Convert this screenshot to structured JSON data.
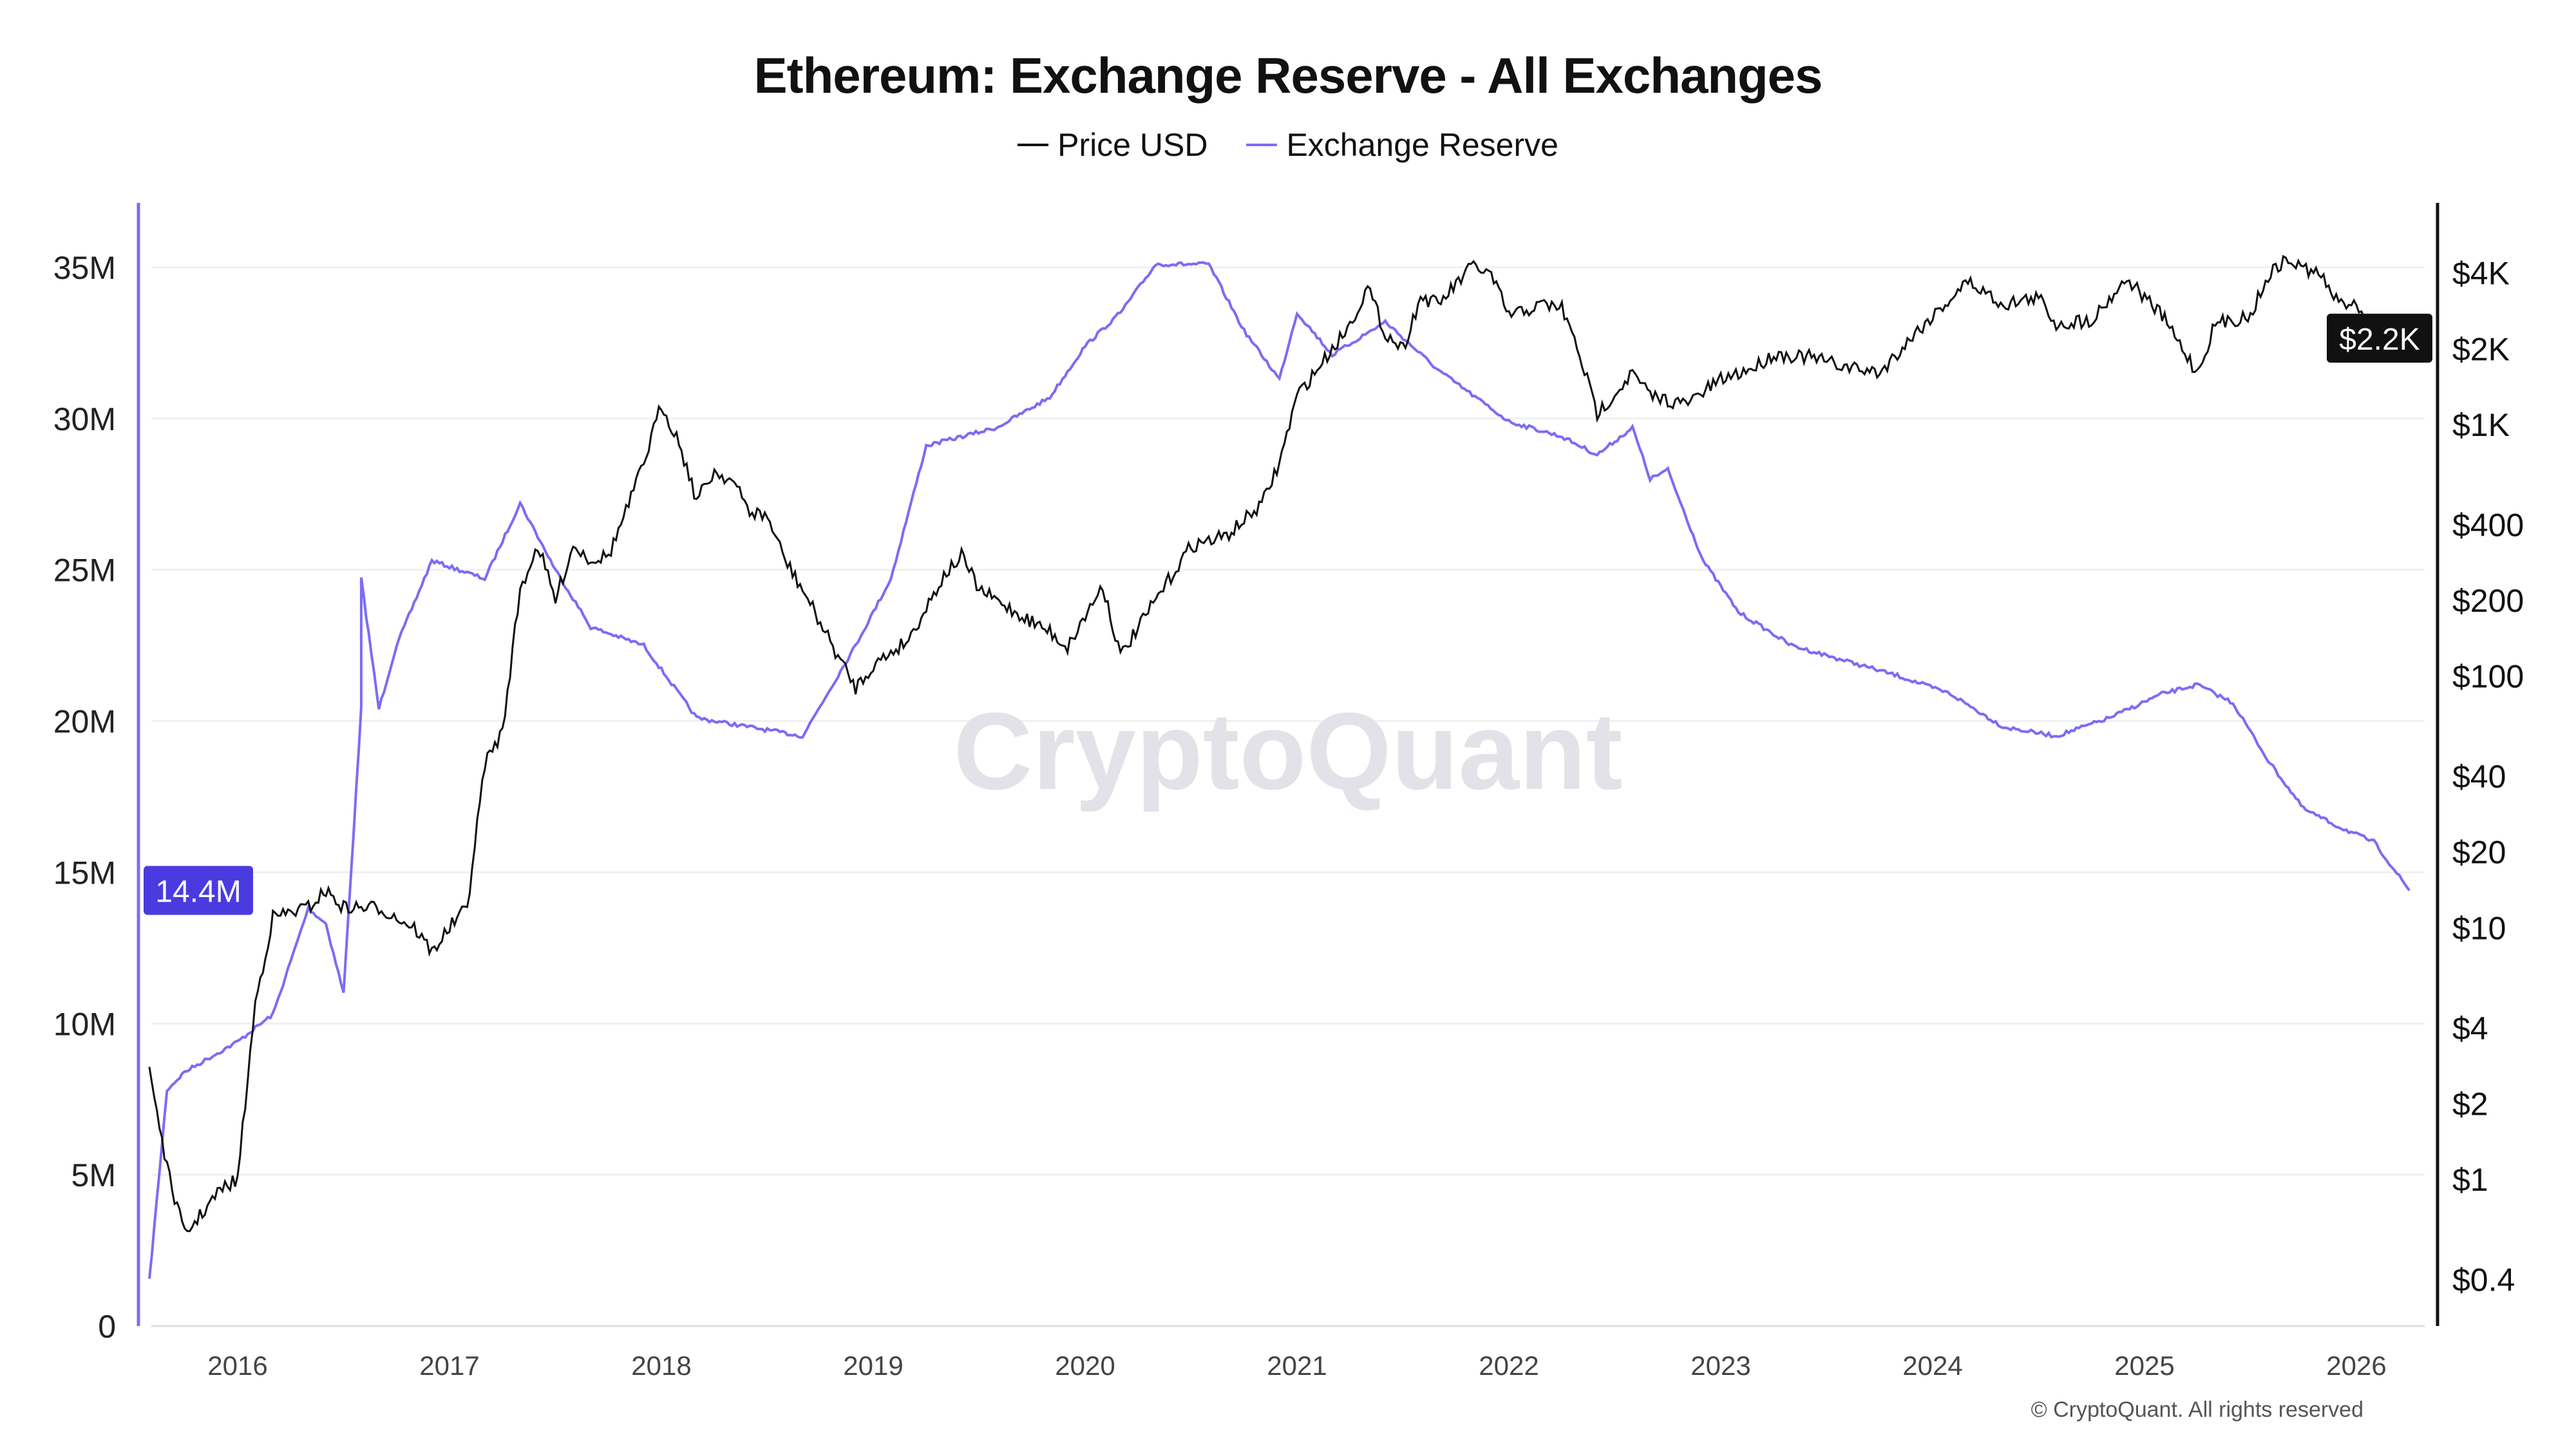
{
  "chart_data": {
    "type": "line",
    "title": "Ethereum: Exchange Reserve - All Exchanges",
    "legend_position": "top-center",
    "grid": true,
    "watermark": "CryptoQuant",
    "copyright": "© CryptoQuant. All rights reserved",
    "x_ticks": [
      "2016",
      "2017",
      "2018",
      "2019",
      "2020",
      "2021",
      "2022",
      "2023",
      "2024",
      "2025",
      "2026"
    ],
    "y_left": {
      "ticks": [
        "0",
        "5M",
        "10M",
        "15M",
        "20M",
        "25M",
        "30M",
        "35M"
      ],
      "tick_values": [
        0,
        5,
        10,
        15,
        20,
        25,
        30,
        35
      ],
      "unit": "M",
      "range": [
        0,
        37
      ],
      "current_label": "14.4M",
      "current_value": 14.4
    },
    "y_right": {
      "scale": "log",
      "ticks": [
        "$0.4",
        "$1",
        "$2",
        "$4",
        "$10",
        "$20",
        "$40",
        "$100",
        "$200",
        "$400",
        "$1K",
        "$2K",
        "$4K"
      ],
      "tick_values": [
        0.4,
        1,
        2,
        4,
        10,
        20,
        40,
        100,
        200,
        400,
        1000,
        2000,
        4000
      ],
      "current_label": "$2.2K",
      "current_value": 2200
    },
    "series": [
      {
        "name": "Price USD",
        "color": "#111111",
        "axis": "right",
        "x": [
          "2015-08",
          "2015-09",
          "2015-10",
          "2015-12",
          "2016-01",
          "2016-02",
          "2016-03",
          "2016-05",
          "2016-06",
          "2016-07",
          "2016-09",
          "2016-11",
          "2016-12",
          "2017-01",
          "2017-02",
          "2017-03",
          "2017-04",
          "2017-05",
          "2017-06",
          "2017-07",
          "2017-08",
          "2017-09",
          "2017-10",
          "2017-11",
          "2017-12",
          "2018-01",
          "2018-02",
          "2018-03",
          "2018-04",
          "2018-05",
          "2018-06",
          "2018-07",
          "2018-08",
          "2018-09",
          "2018-11",
          "2018-12",
          "2019-01",
          "2019-03",
          "2019-05",
          "2019-06",
          "2019-07",
          "2019-09",
          "2019-11",
          "2019-12",
          "2020-02",
          "2020-03",
          "2020-05",
          "2020-07",
          "2020-09",
          "2020-11",
          "2020-12",
          "2021-01",
          "2021-02",
          "2021-04",
          "2021-05",
          "2021-06",
          "2021-07",
          "2021-08",
          "2021-09",
          "2021-11",
          "2021-12",
          "2022-01",
          "2022-03",
          "2022-04",
          "2022-05",
          "2022-06",
          "2022-08",
          "2022-09",
          "2022-11",
          "2023-01",
          "2023-03",
          "2023-04",
          "2023-06",
          "2023-08",
          "2023-10",
          "2023-12",
          "2024-03",
          "2024-05",
          "2024-07",
          "2024-08",
          "2024-10",
          "2024-12",
          "2025-02",
          "2025-04",
          "2025-05",
          "2025-07",
          "2025-08",
          "2025-09",
          "2025-11",
          "2025-12",
          "2026-01",
          "2026-02",
          "2026-03",
          "2026-04"
        ],
        "values": [
          2.8,
          1.1,
          0.6,
          0.9,
          1.0,
          5,
          11,
          12,
          14,
          12,
          12,
          10,
          8,
          10,
          12,
          45,
          60,
          220,
          330,
          200,
          330,
          290,
          300,
          450,
          700,
          1200,
          850,
          500,
          650,
          600,
          450,
          430,
          290,
          220,
          120,
          90,
          110,
          140,
          250,
          300,
          220,
          180,
          150,
          130,
          230,
          120,
          200,
          330,
          360,
          480,
          700,
          1300,
          1600,
          2500,
          3500,
          2300,
          2000,
          3200,
          3000,
          4300,
          3900,
          2700,
          3000,
          2900,
          1900,
          1100,
          1600,
          1300,
          1200,
          1500,
          1700,
          1900,
          1850,
          1700,
          1600,
          2300,
          3700,
          3000,
          3200,
          2500,
          2600,
          3800,
          2700,
          1600,
          2500,
          2700,
          3900,
          4500,
          3900,
          3000,
          3100,
          2100,
          2000,
          2200
        ]
      },
      {
        "name": "Exchange Reserve",
        "color": "#7b6cf5",
        "axis": "left",
        "x": [
          "2015-08",
          "2015-09",
          "2015-10",
          "2016-01",
          "2016-03",
          "2016-05",
          "2016-06",
          "2016-07",
          "2016-08",
          "2016-08",
          "2016-09",
          "2016-10",
          "2016-12",
          "2017-03",
          "2017-05",
          "2017-07",
          "2017-09",
          "2017-12",
          "2018-03",
          "2018-06",
          "2018-09",
          "2018-12",
          "2019-02",
          "2019-04",
          "2019-08",
          "2019-11",
          "2020-01",
          "2020-03",
          "2020-05",
          "2020-08",
          "2020-10",
          "2020-12",
          "2021-01",
          "2021-03",
          "2021-06",
          "2021-09",
          "2022-01",
          "2022-04",
          "2022-06",
          "2022-08",
          "2022-09",
          "2022-10",
          "2022-12",
          "2023-02",
          "2023-05",
          "2023-08",
          "2023-11",
          "2024-02",
          "2024-05",
          "2024-08",
          "2024-11",
          "2025-02",
          "2025-04",
          "2025-06",
          "2025-08",
          "2025-10",
          "2025-12",
          "2026-02",
          "2026-04"
        ],
        "values": [
          1.5,
          7.8,
          8.4,
          9.4,
          10.3,
          13.8,
          13.3,
          11.0,
          20.4,
          24.7,
          20.4,
          22.5,
          25.3,
          24.7,
          27.2,
          25.0,
          23.1,
          22.5,
          20.1,
          19.8,
          19.5,
          22.5,
          24.7,
          29.1,
          29.7,
          30.7,
          32.4,
          33.5,
          35.1,
          35.1,
          32.9,
          31.3,
          33.5,
          32.1,
          33.2,
          31.6,
          29.9,
          29.4,
          28.8,
          29.7,
          28.0,
          28.3,
          25.3,
          23.6,
          22.5,
          22.0,
          21.5,
          20.9,
          19.8,
          19.5,
          20.1,
          20.9,
          21.2,
          20.6,
          18.7,
          17.1,
          16.5,
          16.0,
          14.4
        ]
      }
    ]
  }
}
